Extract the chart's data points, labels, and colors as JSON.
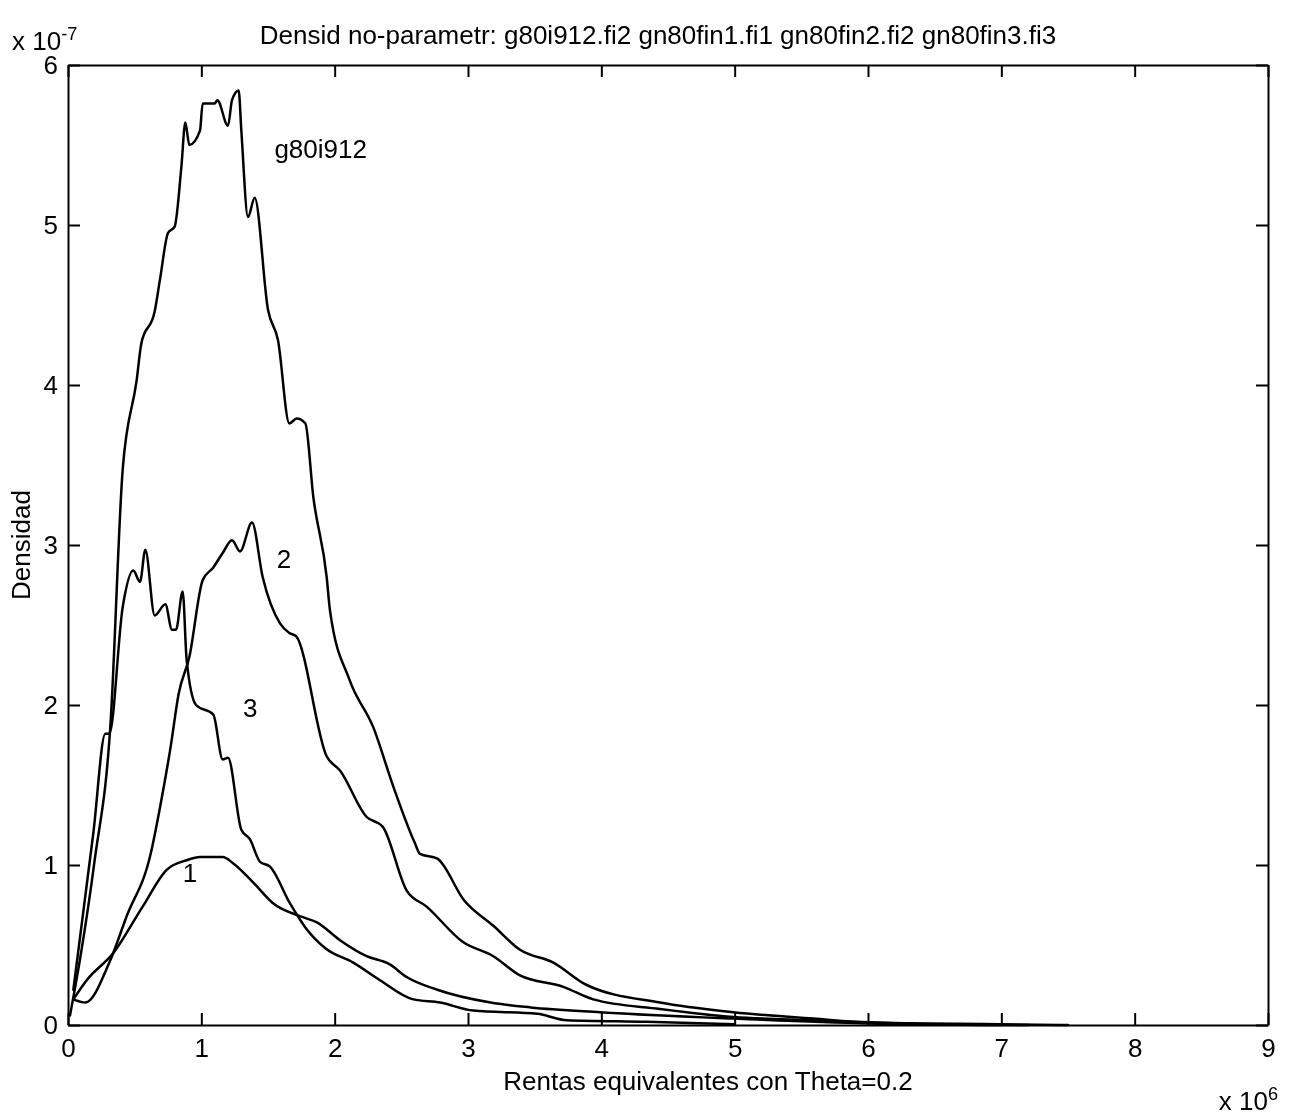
{
  "chart_data": {
    "type": "line",
    "title": "Densid no-parametr: g80i912.fi2 gn80fin1.fi1 gn80fin2.fi2 gn80fin3.fi3",
    "xlabel": "Rentas equivalentes con Theta=0.2",
    "ylabel": "Densidad",
    "xlim": [
      0,
      9
    ],
    "ylim": [
      0,
      6
    ],
    "xticks": [
      0,
      1,
      2,
      3,
      4,
      5,
      6,
      7,
      8,
      9
    ],
    "yticks": [
      0,
      1,
      2,
      3,
      4,
      5,
      6
    ],
    "grid": false,
    "marker": "none",
    "line_style": "solid",
    "series": [
      {
        "name": "g80i912",
        "color": "#000000",
        "x": [
          0.015,
          0.09,
          0.2,
          0.32,
          0.41,
          0.515,
          0.55,
          0.65,
          0.69,
          0.75,
          0.8,
          0.85,
          0.88,
          0.91,
          0.99,
          1.01,
          1.1,
          1.12,
          1.2,
          1.23,
          1.28,
          1.3,
          1.35,
          1.4,
          1.5,
          1.575,
          1.66,
          1.715,
          1.78,
          1.84,
          1.94,
          1.965,
          2.11,
          2.29,
          2.44,
          2.6,
          2.64,
          2.77,
          2.97,
          3.19,
          3.39,
          3.64,
          3.89,
          4.44,
          4.99,
          5.59,
          6,
          7,
          7.5
        ],
        "values": [
          0.06,
          0.41,
          1.03,
          1.9,
          3.47,
          4.03,
          4.26,
          4.46,
          4.66,
          4.95,
          4.99,
          5.36,
          5.64,
          5.5,
          5.59,
          5.76,
          5.76,
          5.78,
          5.62,
          5.78,
          5.84,
          5.59,
          5.05,
          5.17,
          4.47,
          4.28,
          3.76,
          3.79,
          3.76,
          3.3,
          2.8,
          2.59,
          2.16,
          1.86,
          1.49,
          1.14,
          1.07,
          1.04,
          0.78,
          0.62,
          0.47,
          0.39,
          0.25,
          0.14,
          0.08,
          0.04,
          0.015,
          0.005,
          0
        ]
      },
      {
        "name": "1",
        "color": "#000000",
        "x": [
          0.04,
          0.14,
          0.34,
          0.56,
          0.74,
          0.89,
          0.99,
          1.16,
          1.24,
          1.39,
          1.54,
          1.74,
          1.87,
          2.04,
          2.24,
          2.41,
          2.54,
          2.77,
          3.17,
          3.47,
          3.99,
          4.99,
          6,
          7
        ],
        "values": [
          0.16,
          0.28,
          0.45,
          0.74,
          0.97,
          1.03,
          1.05,
          1.05,
          1.01,
          0.89,
          0.76,
          0.68,
          0.64,
          0.53,
          0.43,
          0.38,
          0.3,
          0.22,
          0.14,
          0.11,
          0.08,
          0.04,
          0.01,
          0
        ]
      },
      {
        "name": "2",
        "color": "#000000",
        "x": [
          0.04,
          0.13,
          0.31,
          0.44,
          0.62,
          0.69,
          0.77,
          0.83,
          0.91,
          1.01,
          1.09,
          1.16,
          1.23,
          1.29,
          1.38,
          1.46,
          1.59,
          1.66,
          1.71,
          1.94,
          2.04,
          2.24,
          2.36,
          2.54,
          2.69,
          2.96,
          3.19,
          3.39,
          3.71,
          3.94,
          4.44,
          4.99,
          5.59,
          6.5,
          7.2
        ],
        "values": [
          0.16,
          0.14,
          0.39,
          0.68,
          1.07,
          1.36,
          1.74,
          2.07,
          2.3,
          2.78,
          2.86,
          2.95,
          3.03,
          2.96,
          3.14,
          2.8,
          2.51,
          2.45,
          2.43,
          1.68,
          1.59,
          1.3,
          1.24,
          0.84,
          0.74,
          0.52,
          0.43,
          0.31,
          0.24,
          0.16,
          0.1,
          0.05,
          0.03,
          0.005,
          0
        ]
      },
      {
        "name": "3",
        "color": "#000000",
        "x": [
          0.04,
          0.19,
          0.28,
          0.31,
          0.41,
          0.49,
          0.54,
          0.58,
          0.65,
          0.73,
          0.78,
          0.81,
          0.86,
          0.89,
          0.96,
          1.09,
          1.16,
          1.2,
          1.3,
          1.365,
          1.44,
          1.515,
          1.665,
          1.78,
          1.93,
          2.14,
          2.34,
          2.59,
          2.79,
          3.04,
          3.52,
          3.74,
          4.34,
          5
        ],
        "values": [
          0.22,
          1.2,
          1.82,
          1.82,
          2.61,
          2.84,
          2.77,
          2.97,
          2.56,
          2.63,
          2.47,
          2.47,
          2.71,
          2.28,
          2.0,
          1.94,
          1.66,
          1.67,
          1.22,
          1.16,
          1.02,
          0.99,
          0.76,
          0.61,
          0.48,
          0.39,
          0.28,
          0.16,
          0.14,
          0.09,
          0.07,
          0.03,
          0.02,
          0.005
        ]
      }
    ],
    "annotations": [
      "x 10$^{-7}$",
      "x 10$^{6}$"
    ]
  }
}
